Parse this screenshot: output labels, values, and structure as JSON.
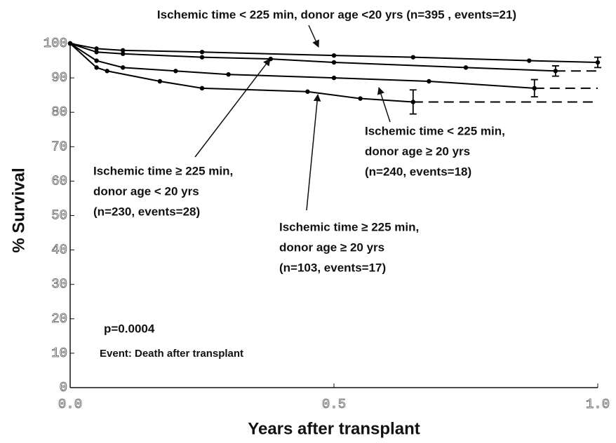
{
  "chart_data": {
    "type": "line",
    "x_label": "Years after transplant",
    "y_label": "% Survival",
    "xlim": [
      0,
      1
    ],
    "ylim": [
      0,
      100
    ],
    "xticks": [
      {
        "value": 0,
        "label": "0.0"
      },
      {
        "value": 0.5,
        "label": "0.5"
      },
      {
        "value": 1,
        "label": "1.0"
      }
    ],
    "yticks": [
      0,
      10,
      20,
      30,
      40,
      50,
      60,
      70,
      80,
      90,
      100
    ],
    "dashed_extension": true,
    "series": [
      {
        "name": "Ischemic time < 225 min, donor age <20 yrs (n=395 , events=21)",
        "color": "#000000",
        "x": [
          0,
          0.05,
          0.1,
          0.25,
          0.5,
          0.65,
          0.87,
          1.0
        ],
        "values": [
          100,
          98.5,
          98,
          97.5,
          96.5,
          96,
          95,
          94.5
        ],
        "errors": [
          null,
          null,
          null,
          null,
          null,
          null,
          null,
          1.5
        ]
      },
      {
        "name": "Ischemic time < 225 min, donor age ≥ 20 yrs (n=240, events=18)",
        "color": "#000000",
        "x": [
          0,
          0.05,
          0.1,
          0.25,
          0.38,
          0.5,
          0.75,
          0.92
        ],
        "values": [
          100,
          97.5,
          97,
          96,
          95.5,
          94.5,
          93,
          92
        ],
        "errors": [
          null,
          null,
          null,
          null,
          null,
          null,
          null,
          1.5
        ]
      },
      {
        "name": "Ischemic time ≥ 225 min, donor age < 20 yrs (n=230, events=28)",
        "color": "#000000",
        "x": [
          0,
          0.05,
          0.1,
          0.2,
          0.3,
          0.5,
          0.68,
          0.88
        ],
        "values": [
          100,
          95,
          93,
          92,
          91,
          90,
          89,
          87
        ],
        "errors": [
          null,
          null,
          null,
          null,
          null,
          null,
          null,
          2.5
        ]
      },
      {
        "name": "Ischemic time ≥ 225 min, donor age ≥ 20 yrs (n=103, events=17)",
        "color": "#000000",
        "x": [
          0,
          0.05,
          0.07,
          0.17,
          0.25,
          0.45,
          0.55,
          0.65
        ],
        "values": [
          100,
          93,
          92,
          89,
          87,
          86,
          84,
          83
        ],
        "errors": [
          null,
          null,
          null,
          null,
          null,
          null,
          null,
          3.5
        ]
      }
    ],
    "annotations": [
      [
        "Ischemic time < 225 min, donor age <20 yrs (n=395 , events=21)"
      ],
      [
        "Ischemic time < 225 min,",
        "donor age ≥ 20 yrs",
        "(n=240, events=18)"
      ],
      [
        "Ischemic time ≥ 225 min,",
        "donor age < 20 yrs",
        "(n=230, events=28)"
      ],
      [
        "Ischemic time ≥ 225 min,",
        "donor age ≥ 20 yrs",
        "(n=103, events=17)"
      ]
    ],
    "p_value": "p=0.0004",
    "event_note": "Event: Death after transplant"
  }
}
